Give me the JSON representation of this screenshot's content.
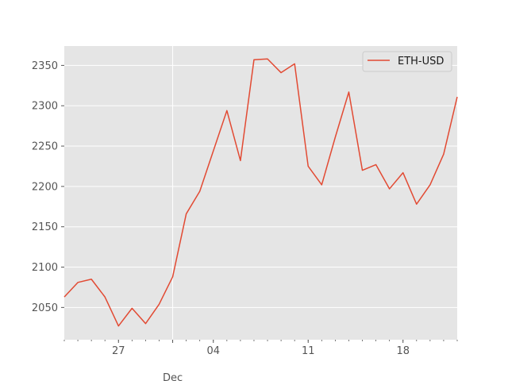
{
  "chart_data": {
    "type": "line",
    "title": "",
    "xlabel": "",
    "ylabel": "",
    "x": [
      "2023-11-23",
      "2023-11-24",
      "2023-11-25",
      "2023-11-26",
      "2023-11-27",
      "2023-11-28",
      "2023-11-29",
      "2023-11-30",
      "2023-12-01",
      "2023-12-02",
      "2023-12-03",
      "2023-12-04",
      "2023-12-05",
      "2023-12-06",
      "2023-12-07",
      "2023-12-08",
      "2023-12-09",
      "2023-12-10",
      "2023-12-11",
      "2023-12-12",
      "2023-12-13",
      "2023-12-14",
      "2023-12-15",
      "2023-12-16",
      "2023-12-17",
      "2023-12-18",
      "2023-12-19",
      "2023-12-20",
      "2023-12-21",
      "2023-12-22"
    ],
    "series": [
      {
        "name": "ETH-USD",
        "color": "#E24A33",
        "values": [
          2063,
          2081,
          2085,
          2063,
          2027,
          2049,
          2030,
          2054,
          2088,
          2166,
          2194,
          2244,
          2294,
          2232,
          2357,
          2358,
          2341,
          2352,
          2225,
          2202,
          2261,
          2317,
          2220,
          2227,
          2197,
          2217,
          2178,
          2202,
          2240,
          2311
        ]
      }
    ],
    "ylim": [
      2010,
      2374
    ],
    "xlim": [
      "2023-11-23",
      "2023-12-22"
    ],
    "yticks": [
      2050,
      2100,
      2150,
      2200,
      2250,
      2300,
      2350
    ],
    "ytick_labels": [
      "2050",
      "2100",
      "2150",
      "2200",
      "2250",
      "2300",
      "2350"
    ],
    "xticks_major": [
      {
        "date": "2023-11-27",
        "label": "27"
      },
      {
        "date": "2023-12-04",
        "label": "04"
      },
      {
        "date": "2023-12-11",
        "label": "11"
      },
      {
        "date": "2023-12-18",
        "label": "18"
      }
    ],
    "x_secondary_label": {
      "date": "2023-12-01",
      "label": "Dec"
    },
    "legend_position": "top-right",
    "grid": true,
    "background": "#E5E5E5",
    "grid_color": "#ffffff"
  }
}
